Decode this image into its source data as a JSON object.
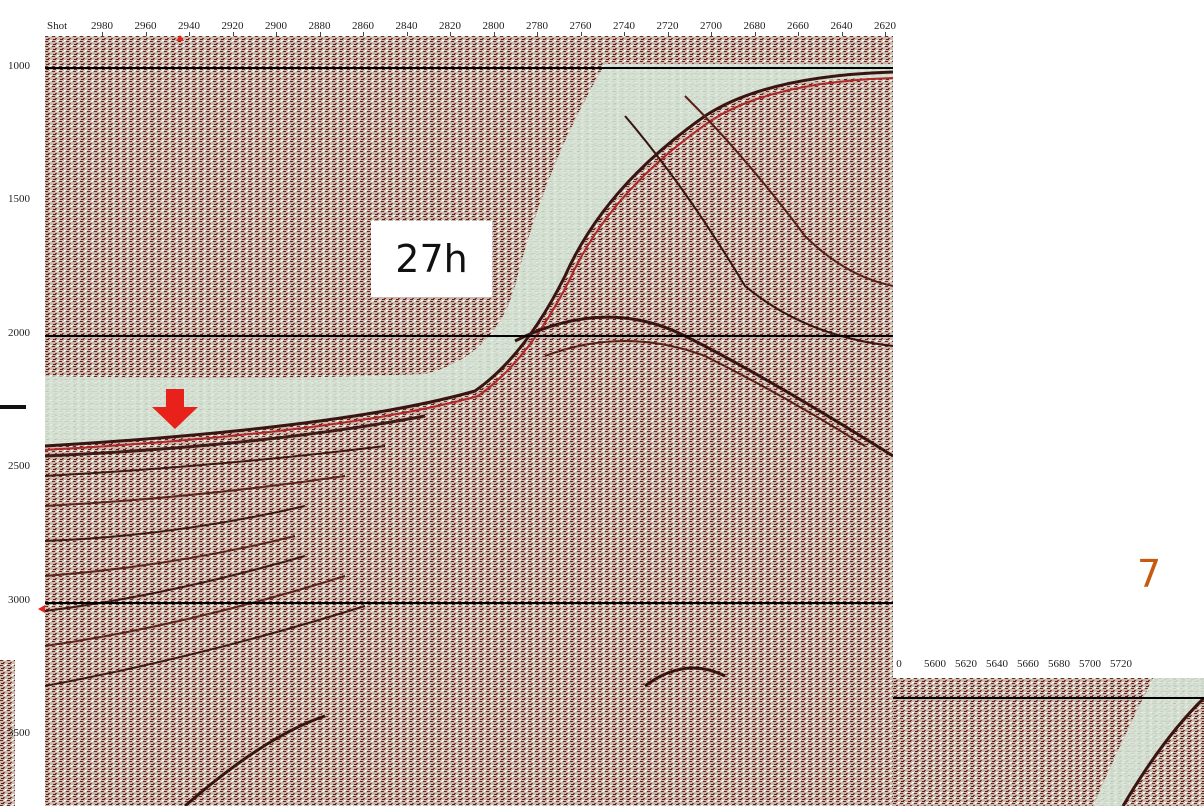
{
  "main_axis": {
    "shot_label": "Shot",
    "ticks": [
      "2980",
      "2960",
      "2940",
      "2920",
      "2900",
      "2880",
      "2860",
      "2840",
      "2820",
      "2800",
      "2780",
      "2760",
      "2740",
      "2720",
      "2700",
      "2680",
      "2660",
      "2640",
      "2620"
    ]
  },
  "time_axis": {
    "ticks": [
      "1000",
      "1500",
      "2000",
      "2500",
      "3000",
      "3500"
    ]
  },
  "second_axis": {
    "ticks": [
      "0",
      "5600",
      "5620",
      "5640",
      "5660",
      "5680",
      "5700",
      "5720"
    ]
  },
  "callout": {
    "text": "27h"
  },
  "page_number": "7",
  "colors": {
    "trace_dark": "#3a1410",
    "trace_red": "#b0282a",
    "seismic_bg": "#d8d2c8",
    "water_column": "#d6e4d6",
    "arrow": "#e8221b",
    "page_number": "#c55a11"
  },
  "icons": {
    "arrow": "red-down-arrow-icon"
  }
}
